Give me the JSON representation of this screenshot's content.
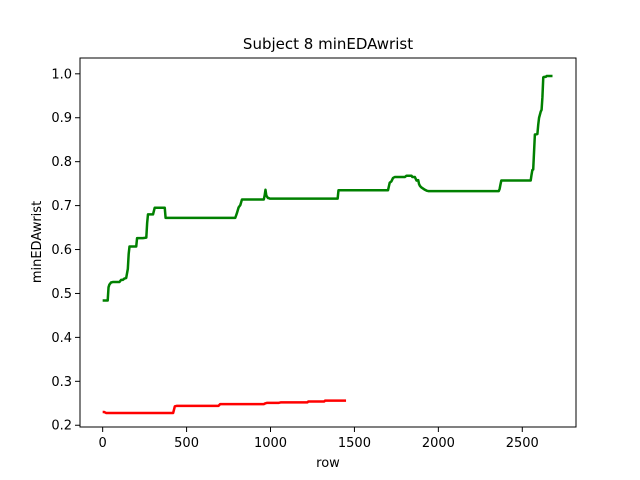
{
  "chart_data": {
    "type": "line",
    "title": "Subject 8 minEDAwrist",
    "xlabel": "row",
    "ylabel": "minEDAwrist",
    "xlim": [
      -135,
      2820
    ],
    "ylim": [
      0.196,
      1.036
    ],
    "xticks": [
      0,
      500,
      1000,
      1500,
      2000,
      2500
    ],
    "yticks": [
      0.2,
      0.3,
      0.4,
      0.5,
      0.6,
      0.7,
      0.8,
      0.9,
      1.0
    ],
    "ytick_labels": [
      "0.2",
      "0.3",
      "0.4",
      "0.5",
      "0.6",
      "0.7",
      "0.8",
      "0.9",
      "1.0"
    ],
    "grid": false,
    "series": [
      {
        "color": "#008000",
        "x": [
          0,
          30,
          35,
          40,
          50,
          60,
          100,
          110,
          120,
          130,
          140,
          150,
          155,
          160,
          200,
          205,
          240,
          260,
          265,
          270,
          300,
          310,
          370,
          375,
          790,
          800,
          810,
          820,
          830,
          960,
          965,
          970,
          975,
          980,
          985,
          990,
          995,
          1400,
          1405,
          1700,
          1710,
          1720,
          1730,
          1740,
          1800,
          1810,
          1840,
          1845,
          1860,
          1870,
          1880,
          1885,
          1890,
          1900,
          1920,
          1930,
          1940,
          2360,
          2365,
          2370,
          2375,
          2550,
          2555,
          2560,
          2565,
          2575,
          2580,
          2590,
          2595,
          2600,
          2610,
          2615,
          2620,
          2625,
          2630,
          2640,
          2645,
          2680
        ],
        "values": [
          0.484,
          0.484,
          0.514,
          0.52,
          0.525,
          0.526,
          0.526,
          0.531,
          0.531,
          0.534,
          0.535,
          0.556,
          0.59,
          0.607,
          0.607,
          0.626,
          0.626,
          0.627,
          0.66,
          0.68,
          0.68,
          0.695,
          0.695,
          0.672,
          0.672,
          0.683,
          0.696,
          0.701,
          0.714,
          0.714,
          0.723,
          0.736,
          0.723,
          0.72,
          0.717,
          0.717,
          0.716,
          0.716,
          0.735,
          0.735,
          0.752,
          0.755,
          0.763,
          0.765,
          0.765,
          0.768,
          0.768,
          0.765,
          0.765,
          0.757,
          0.758,
          0.749,
          0.745,
          0.741,
          0.736,
          0.734,
          0.733,
          0.733,
          0.738,
          0.748,
          0.757,
          0.757,
          0.77,
          0.781,
          0.782,
          0.862,
          0.862,
          0.863,
          0.884,
          0.9,
          0.914,
          0.918,
          0.947,
          0.992,
          0.993,
          0.993,
          0.995,
          0.995
        ]
      },
      {
        "color": "#ff0000",
        "x": [
          0,
          10,
          20,
          30,
          420,
          430,
          440,
          690,
          700,
          710,
          960,
          970,
          980,
          1050,
          1060,
          1220,
          1225,
          1230,
          1320,
          1325,
          1330,
          1450
        ],
        "values": [
          0.23,
          0.23,
          0.228,
          0.228,
          0.228,
          0.243,
          0.244,
          0.244,
          0.248,
          0.248,
          0.248,
          0.25,
          0.251,
          0.251,
          0.252,
          0.252,
          0.254,
          0.254,
          0.254,
          0.256,
          0.256,
          0.256
        ]
      }
    ]
  }
}
